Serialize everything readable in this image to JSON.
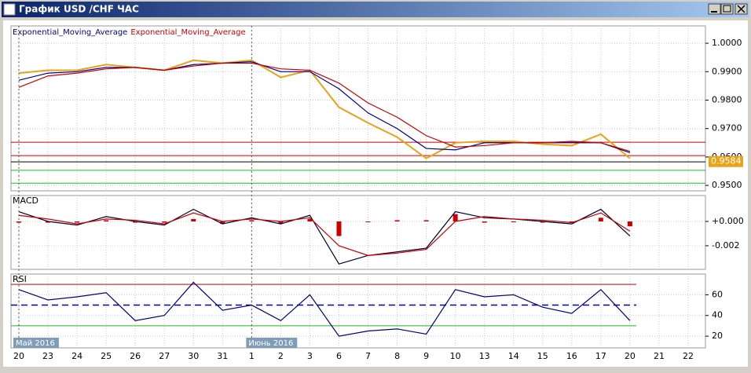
{
  "window_title": "График USD /CHF ЧАС",
  "chart_data": [
    {
      "type": "line",
      "title": null,
      "ylim": [
        0.9481,
        1.0061
      ],
      "yticks": [
        {
          "value": 0.95,
          "label": "0.9500"
        },
        {
          "value": 0.96,
          "label": "0.9600"
        },
        {
          "value": 0.97,
          "label": "0.9700"
        },
        {
          "value": 0.98,
          "label": "0.9800"
        },
        {
          "value": 0.99,
          "label": "0.9900"
        },
        {
          "value": 1.0,
          "label": "1.0000"
        }
      ],
      "grid": true,
      "series": [
        {
          "color": "#e8a317",
          "values": [
            0.9895,
            0.9905,
            0.9905,
            0.9925,
            0.9915,
            0.9905,
            0.994,
            0.993,
            0.994,
            0.988,
            0.9905,
            0.9775,
            0.972,
            0.967,
            0.9595,
            0.965,
            0.9655,
            0.9655,
            0.9645,
            0.964,
            0.968,
            0.9595,
            null,
            null
          ]
        },
        {
          "name": "Exponential_Moving_Average",
          "color": "#00008b",
          "values": [
            0.987,
            0.9895,
            0.99,
            0.9915,
            0.9915,
            0.9905,
            0.9925,
            0.993,
            0.9935,
            0.99,
            0.99,
            0.984,
            0.9755,
            0.97,
            0.963,
            0.9625,
            0.965,
            0.965,
            0.965,
            0.965,
            0.965,
            0.9615,
            null,
            null
          ]
        },
        {
          "name": "Exponential_Moving_Average",
          "color": "#cc0000",
          "values": [
            0.9845,
            0.9885,
            0.9895,
            0.991,
            0.9915,
            0.9905,
            0.992,
            0.993,
            0.993,
            0.991,
            0.9905,
            0.986,
            0.979,
            0.974,
            0.9675,
            0.9635,
            0.964,
            0.965,
            0.965,
            0.9655,
            0.965,
            0.962,
            null,
            null
          ]
        }
      ],
      "levels": [
        {
          "value": 0.9652,
          "color": "#cc0000"
        },
        {
          "value": 0.9605,
          "color": "#cc0000"
        },
        {
          "value": 0.9583,
          "color": "#000000"
        },
        {
          "value": 0.9553,
          "color": "#22bb22"
        },
        {
          "value": 0.9508,
          "color": "#22bb22"
        }
      ],
      "last_price": {
        "value": 0.9584,
        "label": "0.9584"
      }
    },
    {
      "type": "macd",
      "title": "MACD",
      "ylim": [
        -0.00394,
        0.00213
      ],
      "yticks": [
        {
          "value": -0.002,
          "label": "-0.002"
        },
        {
          "value": 0,
          "label": "+0.000"
        }
      ],
      "grid": true,
      "histogram": {
        "color": "#cc0000",
        "values": [
          -0.0001,
          -0.0001,
          -0.0001,
          0.0001,
          -0.0001,
          -0.0001,
          0.0002,
          -0.0002,
          0.0001,
          -0.0002,
          0.0002,
          -0.0012,
          0,
          0.0001,
          0.0001,
          0.0006,
          -0.0001,
          0,
          -0.0001,
          -0.0001,
          0.0003,
          -0.0004,
          null,
          null
        ]
      },
      "series": [
        {
          "color": "#000033",
          "values": [
            0.0008,
            0,
            -0.0003,
            0.0004,
            0,
            -0.0003,
            0.001,
            -0.0002,
            0.0003,
            -0.0002,
            0.0005,
            -0.0035,
            -0.0028,
            -0.0025,
            -0.0022,
            0.0008,
            0.0003,
            0.0002,
            0,
            -0.0002,
            0.001,
            -0.0012,
            null,
            null
          ]
        },
        {
          "color": "#cc0000",
          "values": [
            0.0005,
            0.0002,
            -0.0002,
            0.0002,
            0.0001,
            -0.0002,
            0.0007,
            0,
            0.0002,
            0,
            0.0003,
            -0.002,
            -0.0028,
            -0.0026,
            -0.0023,
            0,
            0.0004,
            0.0002,
            0.0001,
            -0.0001,
            0.0007,
            -0.0008,
            null,
            null
          ]
        }
      ]
    },
    {
      "type": "rsi",
      "title": "RSI",
      "ylim": [
        8.7,
        80
      ],
      "yticks": [
        20,
        40,
        60
      ],
      "grid": true,
      "categories": [
        "20",
        "23",
        "24",
        "25",
        "26",
        "27",
        "30",
        "31",
        "1",
        "2",
        "3",
        "6",
        "7",
        "8",
        "9",
        "10",
        "13",
        "14",
        "15",
        "16",
        "17",
        "20",
        "21",
        "22"
      ],
      "period_labels": [
        {
          "text": "Май 2016",
          "at": 0
        },
        {
          "text": "Июнь 2016",
          "at": 8
        }
      ],
      "series": [
        {
          "color": "#000080",
          "values": [
            65,
            55,
            58,
            62,
            35,
            40,
            72,
            45,
            50,
            35,
            60,
            20,
            25,
            27,
            22,
            65,
            58,
            60,
            48,
            42,
            65,
            35,
            null,
            null
          ]
        }
      ],
      "levels": [
        {
          "value": 70,
          "color": "#cc0000"
        },
        {
          "value": 50,
          "color": "#0000aa",
          "dash": true
        },
        {
          "value": 30,
          "color": "#22bb22"
        }
      ]
    }
  ]
}
